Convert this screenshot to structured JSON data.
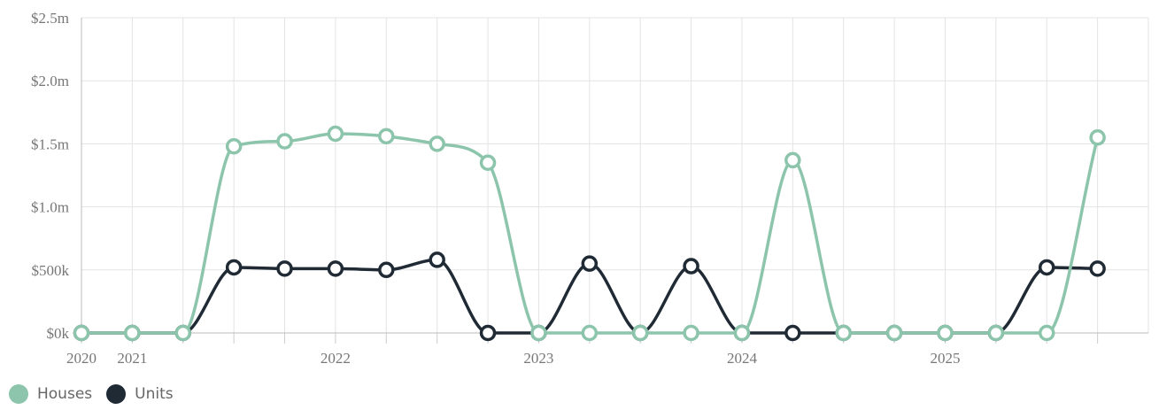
{
  "chart_data": {
    "type": "line",
    "x": [
      2020.0,
      2020.25,
      2020.5,
      2020.75,
      2021.0,
      2021.25,
      2021.5,
      2021.75,
      2022.0,
      2022.25,
      2022.5,
      2022.75,
      2023.0,
      2023.25,
      2023.5,
      2023.75,
      2024.0,
      2024.25,
      2024.5,
      2024.75,
      2025.0
    ],
    "xlim": [
      2020.0,
      2025.25
    ],
    "x_ticks": [
      {
        "value": 2020.0,
        "label": "2020"
      },
      {
        "value": 2020.25,
        "label": "2021"
      },
      {
        "value": 2021.25,
        "label": "2022"
      },
      {
        "value": 2022.25,
        "label": "2023"
      },
      {
        "value": 2023.25,
        "label": "2024"
      },
      {
        "value": 2024.25,
        "label": "2025"
      }
    ],
    "y_ticks": [
      {
        "value": 0,
        "label": "$0k"
      },
      {
        "value": 500000,
        "label": "$500k"
      },
      {
        "value": 1000000,
        "label": "$1.0m"
      },
      {
        "value": 1500000,
        "label": "$1.5m"
      },
      {
        "value": 2000000,
        "label": "$2.0m"
      },
      {
        "value": 2500000,
        "label": "$2.5m"
      }
    ],
    "ylim": [
      0,
      2500000
    ],
    "grid": true,
    "legend_position": "bottom-left",
    "series": [
      {
        "name": "Houses",
        "color": "#8cc5ac",
        "values": [
          0,
          0,
          0,
          1480000,
          1520000,
          1580000,
          1560000,
          1500000,
          1350000,
          0,
          0,
          0,
          0,
          0,
          1370000,
          0,
          0,
          0,
          0,
          0,
          1550000
        ]
      },
      {
        "name": "Units",
        "color": "#1f2a35",
        "values": [
          0,
          0,
          0,
          520000,
          510000,
          510000,
          500000,
          580000,
          0,
          0,
          550000,
          0,
          530000,
          0,
          0,
          0,
          0,
          0,
          0,
          520000,
          510000
        ]
      }
    ]
  }
}
